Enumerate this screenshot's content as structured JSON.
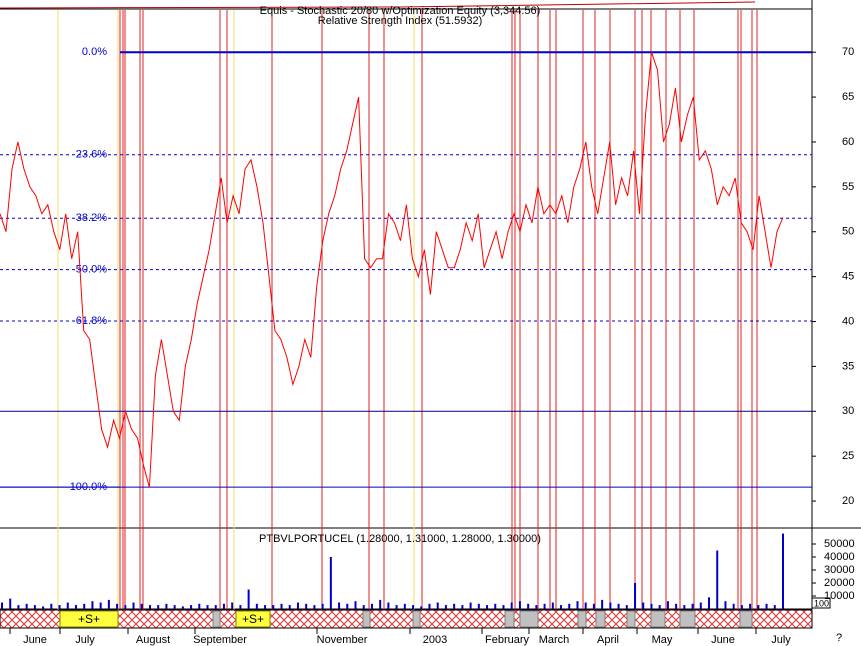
{
  "chart_data": [
    {
      "type": "line",
      "title": "Equis - Stochastic 20/80 w/Optimization Equity (3,344.56)",
      "subtitle": "Relative Strength Index (51.5932)",
      "series": [
        {
          "name": "Relative Strength Index",
          "color": "#ff0000",
          "values": [
            52,
            50,
            57,
            60,
            57,
            55,
            54,
            52,
            53,
            50,
            48,
            52,
            47,
            50,
            39,
            38,
            33,
            28,
            26,
            29,
            27,
            30,
            28,
            27,
            24,
            21.5,
            34,
            38,
            34,
            30,
            29,
            35,
            38,
            42,
            45,
            48,
            52,
            56,
            51,
            54,
            52,
            57,
            58,
            55,
            51,
            45,
            39,
            38,
            36,
            33,
            35,
            38,
            36,
            44,
            49,
            52,
            54,
            57,
            59,
            62,
            65,
            47,
            46,
            47,
            47,
            52,
            51,
            49,
            53,
            47,
            45,
            48,
            43,
            50,
            48,
            46,
            46,
            48,
            51,
            49,
            52,
            46,
            48,
            50,
            47,
            50,
            52,
            50,
            53,
            51,
            55,
            52,
            53,
            52,
            54,
            51,
            55,
            57,
            60,
            55,
            52,
            56,
            60,
            53,
            56,
            54,
            59,
            52,
            63,
            70,
            68,
            60,
            62,
            66,
            60,
            63,
            65,
            58,
            59,
            57,
            53,
            55,
            54,
            56,
            51,
            50,
            48,
            54,
            50,
            46,
            50,
            51.6
          ]
        }
      ],
      "ylim": [
        17,
        74.7
      ],
      "yticks": [
        20,
        25,
        30,
        35,
        40,
        45,
        50,
        55,
        60,
        65,
        70
      ],
      "fib_levels": [
        {
          "value": 70,
          "label": "0.0%"
        },
        {
          "value": 58.57,
          "label": "23.6%"
        },
        {
          "value": 51.5,
          "label": "38.2%"
        },
        {
          "value": 45.78,
          "label": "50.0%"
        },
        {
          "value": 40.06,
          "label": "61.8%"
        },
        {
          "value": 21.56,
          "label": "100.0%"
        }
      ],
      "hline": 30,
      "annotations": [
        "+S+",
        "+S+"
      ]
    },
    {
      "type": "bar",
      "title": "PTBVLPORTUCEL (1.28000, 1.31000, 1.28000, 1.30000)",
      "series": [
        {
          "name": "Volume",
          "color": "#0000cc",
          "values": [
            5000,
            8000,
            3000,
            4000,
            3000,
            2000,
            4000,
            3000,
            5000,
            3000,
            4000,
            6000,
            5000,
            7000,
            4000,
            3000,
            5000,
            4000,
            3000,
            3000,
            4000,
            3000,
            2000,
            3000,
            4000,
            3000,
            3000,
            4000,
            5000,
            3000,
            15000,
            4000,
            3000,
            3000,
            4000,
            3000,
            5000,
            4000,
            3000,
            4000,
            40000,
            5000,
            4000,
            6000,
            3000,
            4000,
            7000,
            5000,
            3000,
            4000,
            3000,
            2000,
            4000,
            5000,
            3000,
            4000,
            3000,
            5000,
            4000,
            3000,
            4000,
            3000,
            5000,
            6000,
            4000,
            3000,
            4000,
            5000,
            3000,
            4000,
            6000,
            5000,
            4000,
            7000,
            5000,
            4000,
            3000,
            20000,
            5000,
            4000,
            3000,
            6000,
            4000,
            3000,
            4000,
            5000,
            9000,
            45000,
            6000,
            4000,
            3000,
            4000,
            3000,
            4000,
            3000,
            58000
          ]
        }
      ],
      "ylim": [
        0,
        60000
      ],
      "yticks": [
        10000,
        20000,
        30000,
        40000,
        50000
      ],
      "x_labels": [
        "June",
        "July",
        "August",
        "September",
        "November",
        "2003",
        "February",
        "March",
        "April",
        "May",
        "June",
        "July"
      ],
      "scale_label": "100"
    }
  ],
  "help_label": "?"
}
